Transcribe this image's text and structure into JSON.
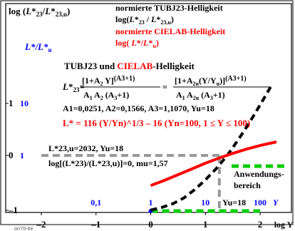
{
  "chart_data": {
    "type": "line",
    "y_axis_label": "log (L*23/L*23,u)",
    "x_axis_label": "log Y",
    "xlim": [
      -2,
      2.3
    ],
    "ylim": [
      -1.05,
      2
    ],
    "x_ticks": [
      -2,
      -1,
      0,
      1,
      2
    ],
    "x_tick_labels": [
      "–2",
      "–1",
      "0",
      "1",
      "2"
    ],
    "y_ticks": [
      -1,
      0,
      1
    ],
    "y_tick_labels": [
      "–1",
      "0",
      "1"
    ],
    "y_secondary_label": "L*/L*u",
    "y_secondary_ticks": [
      {
        "value": 1,
        "label": "10"
      },
      {
        "value": 0,
        "label": "1"
      }
    ],
    "x_secondary_ticks": [
      {
        "value": -1,
        "label": "0,1"
      },
      {
        "value": 0,
        "label": "1"
      },
      {
        "value": 1,
        "label": "10"
      },
      {
        "value": 2,
        "label": "100"
      }
    ],
    "x_secondary_unit": "Y",
    "yu_marker_label": "Yu=18",
    "legend": {
      "line1": "normierte TUBJ23-Helligkeit",
      "line2": "log(L*23 / L*23,u)",
      "line3": "normierte CIELAB-Helligkeit",
      "line4": "log( L*/L*u)"
    },
    "formula_heading_black": "TUBJ23 und ",
    "formula_heading_red": "CIELAB",
    "formula_heading_tail": "-Helligkeit",
    "formula_l23": "L*23= [1+A2 Y](A3+1) / A1 A2 (A3+1) = [1+A2u(Y/Yu)](A3+1) / A1 A2u (A3+1)",
    "constants": "A1=0,0251, A2=0,1566, A3=1,1070, Yu=18",
    "cielab_formula": "L* = 116 (Y/Yn)^1/3 – 16   (Yn=100, 1 ≤ Y ≤ 100)",
    "note_l23u": "L*23,u=2032, Yu=18",
    "note_log": "log[(L*23)/(L*23,u)]=0, mu=1,57",
    "anwendungsbereich": [
      "Anwendungs-",
      "bereich"
    ],
    "footer": "orr70-6e",
    "series": [
      {
        "name": "normierte TUBJ23-Helligkeit",
        "color": "#000000",
        "style": "dashed",
        "x": [
          0.0,
          0.2,
          0.4,
          0.6,
          0.8,
          1.0,
          1.2,
          1.4,
          1.6,
          1.8,
          2.0,
          2.2
        ],
        "y": [
          -1.05,
          -1.0,
          -0.93,
          -0.82,
          -0.66,
          -0.47,
          -0.25,
          0.0,
          0.3,
          0.62,
          0.97,
          1.33
        ]
      },
      {
        "name": "normierte CIELAB-Helligkeit",
        "color": "#ff0000",
        "style": "solid",
        "x": [
          0.0,
          0.25,
          0.5,
          0.75,
          1.0,
          1.25,
          1.5,
          1.75,
          2.0,
          2.3
        ],
        "y": [
          -0.58,
          -0.48,
          -0.37,
          -0.26,
          -0.15,
          -0.05,
          0.04,
          0.12,
          0.19,
          0.26
        ]
      }
    ],
    "reference_lines": [
      {
        "name": "yu-horizontal",
        "color": "#999999",
        "from": [
          -2,
          0
        ],
        "to": [
          1.255,
          0
        ]
      },
      {
        "name": "yu-vertical",
        "color": "#999999",
        "from": [
          1.255,
          0
        ],
        "to": [
          1.255,
          -1.05
        ]
      }
    ],
    "range_highlights": [
      {
        "name": "green-x-range",
        "color": "#00cc00",
        "axis": "x",
        "range": [
          0,
          2
        ]
      },
      {
        "name": "green-legend",
        "color": "#00cc00",
        "axis": "legend"
      }
    ]
  }
}
